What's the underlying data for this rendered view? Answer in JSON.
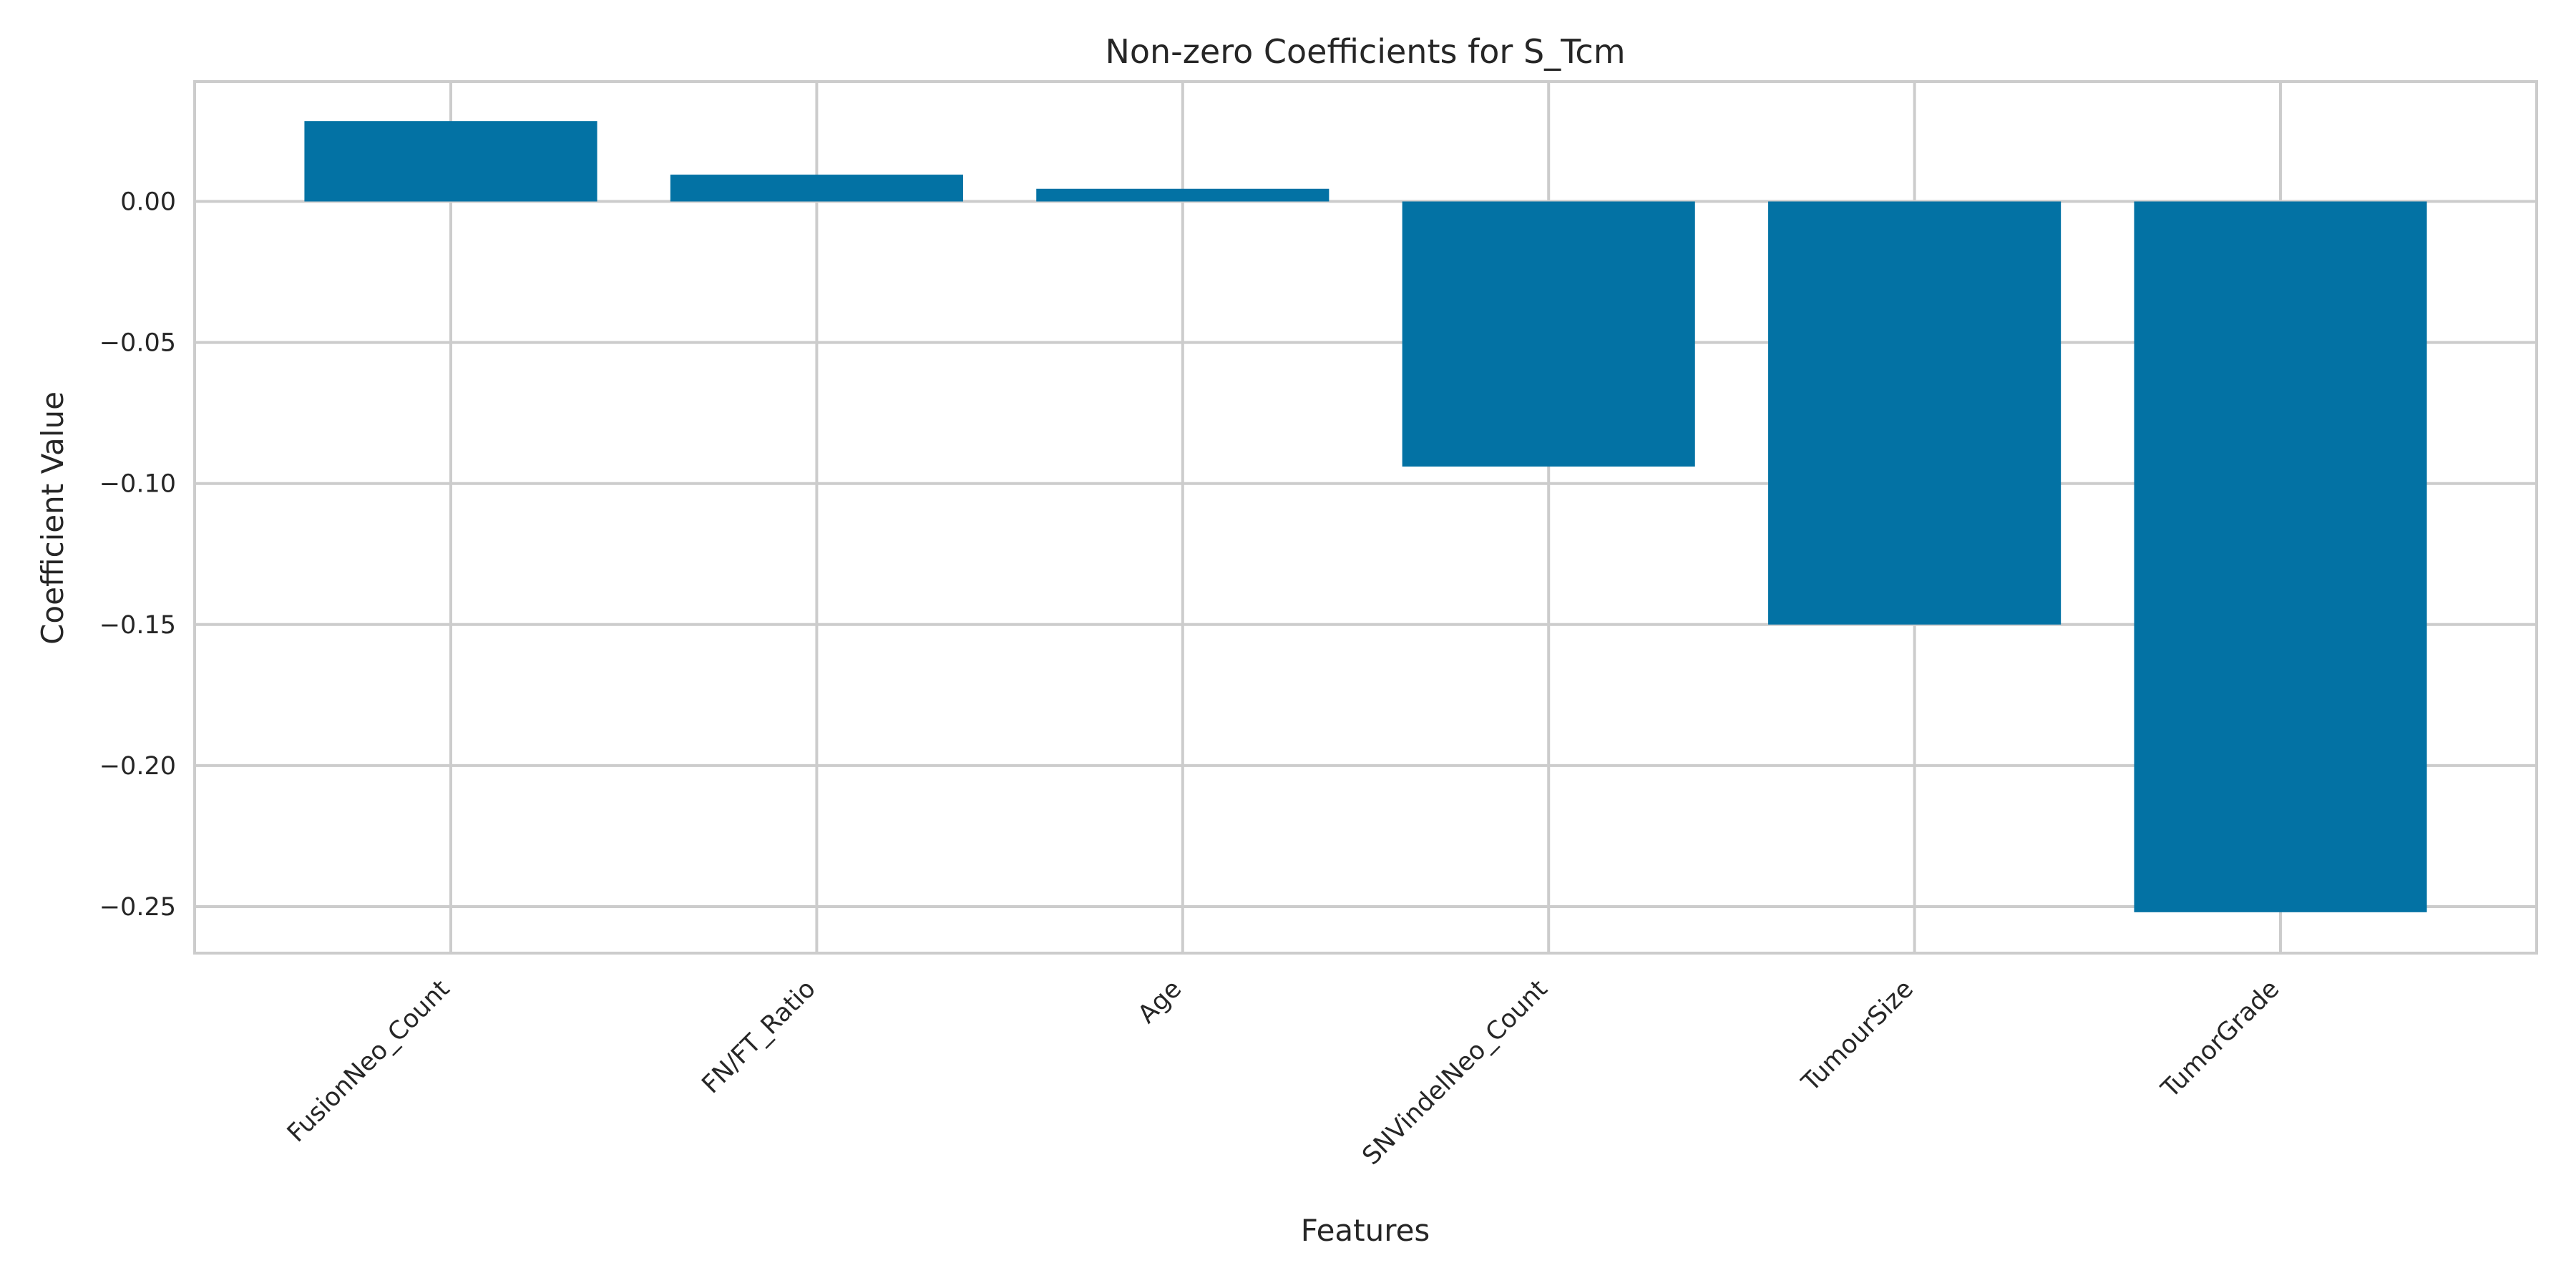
{
  "chart_data": {
    "type": "bar",
    "title": "Non-zero Coefficients for S_Tcm",
    "xlabel": "Features",
    "ylabel": "Coefficient Value",
    "categories": [
      "FusionNeo_Count",
      "FN/FT_Ratio",
      "Age",
      "SNVindelNeo_Count",
      "TumourSize",
      "TumorGrade"
    ],
    "values": [
      0.0285,
      0.0095,
      0.0045,
      -0.094,
      -0.15,
      -0.252
    ],
    "yticks": [
      0.0,
      -0.05,
      -0.1,
      -0.15,
      -0.2,
      -0.25
    ],
    "ytick_labels": [
      "0.00",
      "−0.05",
      "−0.10",
      "−0.15",
      "−0.20",
      "−0.25"
    ],
    "ylim": [
      -0.2665,
      0.0425
    ],
    "grid": true,
    "bar_color": "#0372a4",
    "grid_color": "#cccccc",
    "spine_color": "#cccccc"
  }
}
